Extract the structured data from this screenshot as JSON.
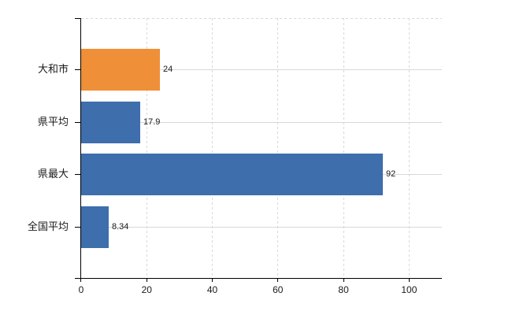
{
  "chart_data": {
    "type": "bar",
    "orientation": "horizontal",
    "title": "",
    "xlabel": "",
    "ylabel": "",
    "categories": [
      "大和市",
      "県平均",
      "県最大",
      "全国平均"
    ],
    "values": [
      24,
      17.9,
      92,
      8.34
    ],
    "value_labels": [
      "24",
      "17.9",
      "92",
      "8.34"
    ],
    "bar_colors": [
      "#EF8F38",
      "#3E6EAC",
      "#3E6EAC",
      "#3E6EAC"
    ],
    "x_ticks": [
      0,
      20,
      40,
      60,
      80,
      100
    ],
    "x_tick_labels": [
      "0",
      "20",
      "40",
      "60",
      "80",
      "100"
    ],
    "xlim": [
      0,
      110
    ],
    "grid": "on",
    "vertical_gridlines": "dashed",
    "horizontal_gridlines": "solid",
    "legend": "none"
  },
  "colors": {
    "axis": "#000000",
    "grid": "#D8D8D8",
    "text": "#1A1A1A",
    "background": "#FFFFFF",
    "bar_blue": "#3E6EAC",
    "bar_orange": "#EF8F38"
  }
}
